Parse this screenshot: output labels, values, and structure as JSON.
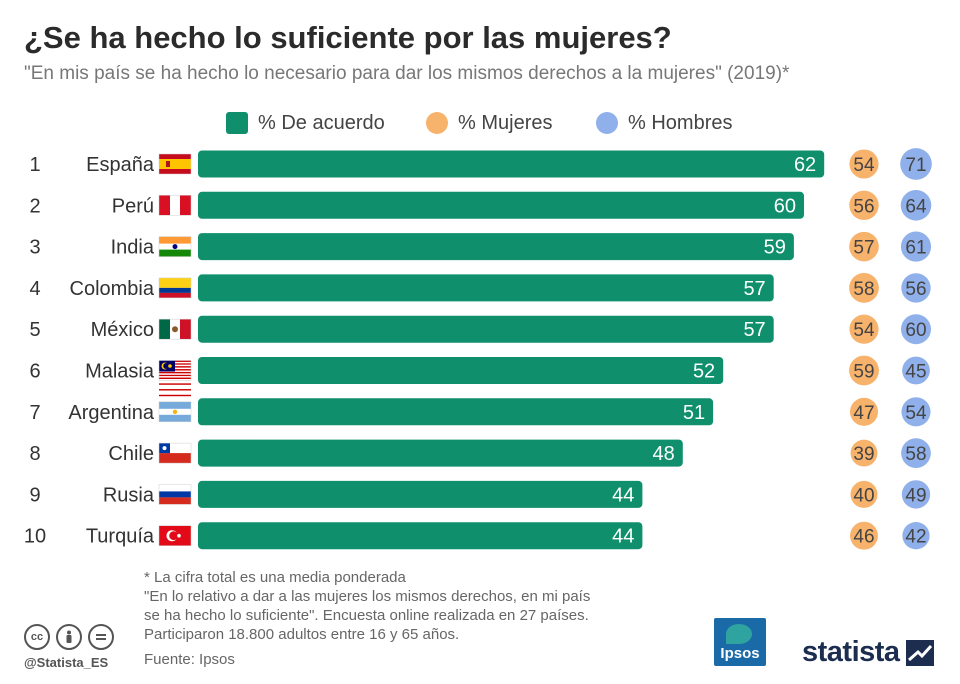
{
  "header": {
    "title": "¿Se ha hecho lo suficiente por las mujeres?",
    "subtitle": "\"En mis país se ha hecho lo necesario para dar los mismos derechos a la mujeres\" (2019)*"
  },
  "legend": {
    "agree_label": "% De acuerdo",
    "women_label": "% Mujeres",
    "men_label": "% Hombres"
  },
  "colors": {
    "agree": "#0f8f6c",
    "women": "#f7b26b",
    "men": "#8fb0ea"
  },
  "chart_data": {
    "type": "bar",
    "orientation": "horizontal",
    "ranks": [
      "1",
      "2",
      "3",
      "4",
      "5",
      "6",
      "7",
      "8",
      "9",
      "10"
    ],
    "categories": [
      "España",
      "Perú",
      "India",
      "Colombia",
      "México",
      "Malasia",
      "Argentina",
      "Chile",
      "Rusia",
      "Turquía"
    ],
    "flag_icons": [
      "flag-spain-icon",
      "flag-peru-icon",
      "flag-india-icon",
      "flag-colombia-icon",
      "flag-mexico-icon",
      "flag-malaysia-icon",
      "flag-argentina-icon",
      "flag-chile-icon",
      "flag-russia-icon",
      "flag-turkey-icon"
    ],
    "series": [
      {
        "name": "% De acuerdo",
        "values": [
          62,
          60,
          59,
          57,
          57,
          52,
          51,
          48,
          44,
          44
        ]
      },
      {
        "name": "% Mujeres",
        "values": [
          54,
          56,
          57,
          58,
          54,
          59,
          47,
          39,
          40,
          46
        ]
      },
      {
        "name": "% Hombres",
        "values": [
          71,
          64,
          61,
          56,
          60,
          45,
          54,
          58,
          49,
          42
        ]
      }
    ]
  },
  "footer": {
    "note_lines": [
      "* La cifra total es una media ponderada",
      "\"En lo relativo a dar a las mujeres los mismos derechos, en mi país",
      "se ha hecho lo suficiente\". Encuesta online realizada en 27 países.",
      "Participaron 18.800 adultos entre 16 y 65 años."
    ],
    "source": "Fuente: Ipsos",
    "handle": "@Statista_ES",
    "ipsos_logo": "Ipsos",
    "statista_logo": "statista"
  }
}
